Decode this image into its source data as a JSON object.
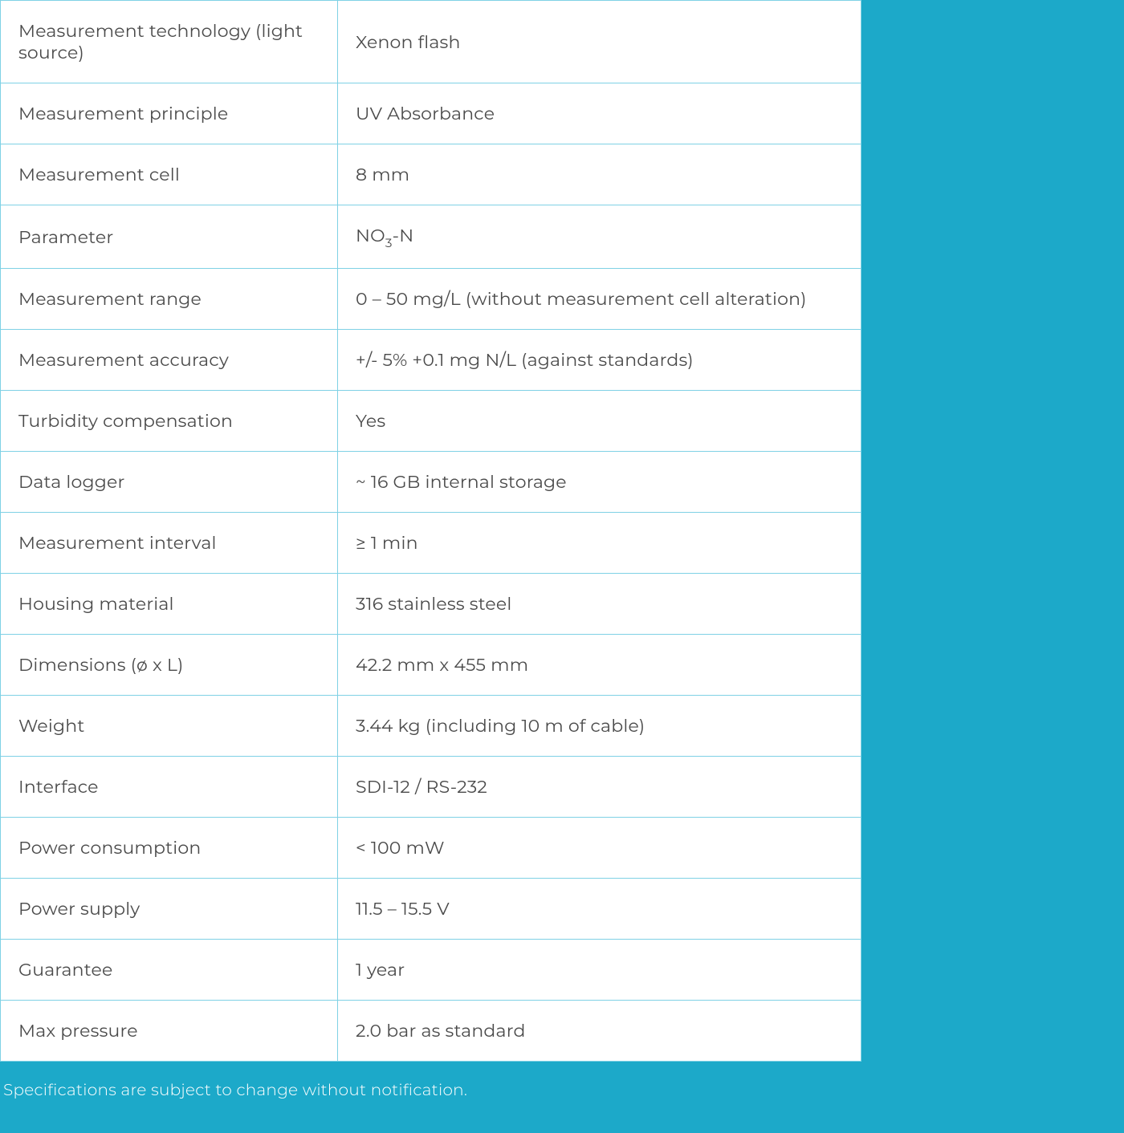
{
  "page": {
    "background_color": "#1ca9c9",
    "table_background": "#ffffff",
    "border_color": "#7fd1e5",
    "text_color": "#4a4a4a",
    "footnote_color": "#ffffff",
    "font_size_cell": 22,
    "font_size_footnote": 20,
    "label_col_width": 420
  },
  "table": {
    "rows": [
      {
        "label": "Measurement technology (light source)",
        "value": "Xenon flash"
      },
      {
        "label": "Measurement principle",
        "value": "UV Absorbance"
      },
      {
        "label": "Measurement cell",
        "value": "8 mm"
      },
      {
        "label": "Parameter",
        "value_html": "NO<sub>3</sub>-N",
        "value_plain": "NO3-N"
      },
      {
        "label": "Measurement range",
        "value": "0 – 50 mg/L  (without measurement cell alteration)"
      },
      {
        "label": "Measurement accuracy",
        "value": "+/- 5% +0.1 mg N/L (against standards)"
      },
      {
        "label": "Turbidity compensation",
        "value": "Yes"
      },
      {
        "label": "Data logger",
        "value": "~ 16 GB internal storage"
      },
      {
        "label": "Measurement interval",
        "value": "≥ 1 min"
      },
      {
        "label": "Housing material",
        "value": "316 stainless steel"
      },
      {
        "label": "Dimensions (ø x L)",
        "value": "42.2 mm x 455 mm"
      },
      {
        "label": "Weight",
        "value": "3.44 kg (including 10 m of cable)"
      },
      {
        "label": "Interface",
        "value": "SDI-12 / RS-232"
      },
      {
        "label": "Power consumption",
        "value": "< 100 mW"
      },
      {
        "label": "Power supply",
        "value": "11.5 – 15.5 V"
      },
      {
        "label": "Guarantee",
        "value": "1 year"
      },
      {
        "label": "Max pressure",
        "value": "2.0 bar as standard"
      }
    ]
  },
  "footnote": "Specifications are subject to change without notification."
}
